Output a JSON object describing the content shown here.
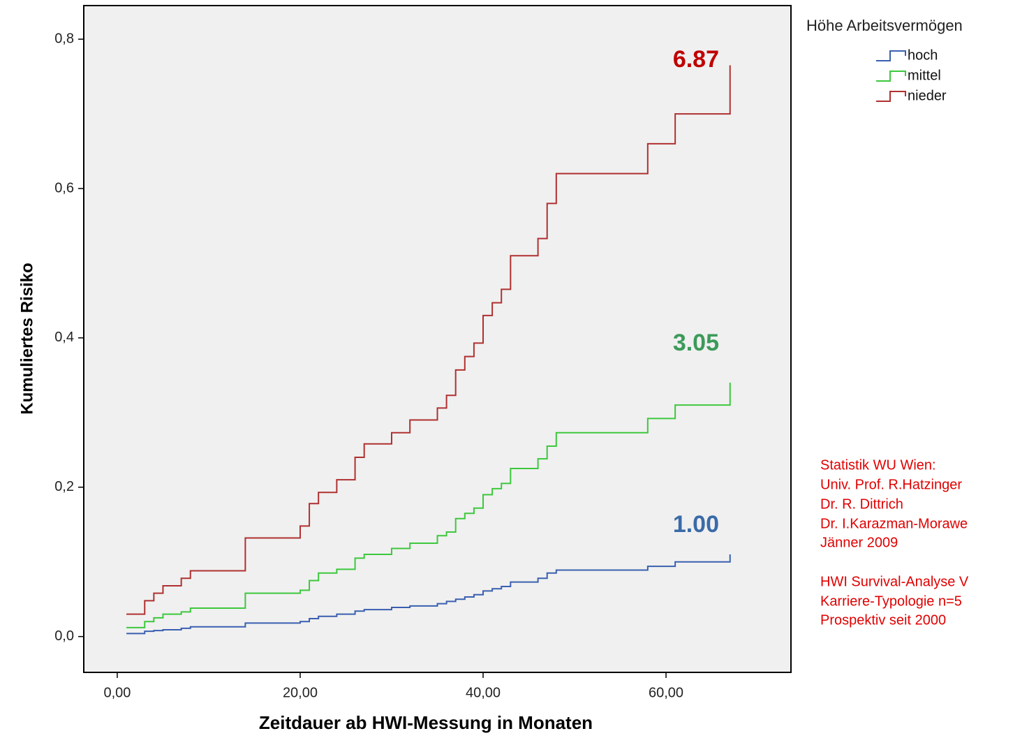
{
  "chart_data": {
    "type": "line",
    "step": "post",
    "x_label": "Zeitdauer ab HWI-Messung in Monaten",
    "y_label": "Kumuliertes Risiko",
    "x": [
      1,
      3,
      4,
      5,
      7,
      8,
      14,
      20,
      21,
      22,
      24,
      26,
      27,
      30,
      32,
      35,
      36,
      37,
      38,
      39,
      40,
      41,
      42,
      43,
      46,
      47,
      48,
      58,
      61,
      67
    ],
    "series": [
      {
        "name": "hoch",
        "color": "#3a5fb0",
        "values": [
          0.004,
          0.007,
          0.008,
          0.009,
          0.011,
          0.013,
          0.018,
          0.02,
          0.024,
          0.027,
          0.03,
          0.034,
          0.036,
          0.039,
          0.041,
          0.044,
          0.047,
          0.05,
          0.053,
          0.056,
          0.061,
          0.064,
          0.067,
          0.073,
          0.078,
          0.085,
          0.089,
          0.094,
          0.1,
          0.11
        ]
      },
      {
        "name": "mittel",
        "color": "#3cc83c",
        "values": [
          0.012,
          0.02,
          0.025,
          0.03,
          0.033,
          0.038,
          0.058,
          0.062,
          0.075,
          0.085,
          0.09,
          0.105,
          0.11,
          0.118,
          0.125,
          0.135,
          0.14,
          0.158,
          0.165,
          0.172,
          0.19,
          0.198,
          0.205,
          0.225,
          0.238,
          0.255,
          0.273,
          0.292,
          0.31,
          0.34
        ]
      },
      {
        "name": "nieder",
        "color": "#b03030",
        "values": [
          0.03,
          0.048,
          0.058,
          0.068,
          0.078,
          0.088,
          0.132,
          0.148,
          0.178,
          0.193,
          0.21,
          0.24,
          0.258,
          0.273,
          0.29,
          0.306,
          0.323,
          0.357,
          0.375,
          0.393,
          0.43,
          0.447,
          0.465,
          0.51,
          0.533,
          0.58,
          0.62,
          0.66,
          0.7,
          0.765
        ]
      }
    ],
    "legend_title": "Höhe Arbeitsvermögen",
    "legend": "outside-right",
    "xlim": [
      -3.66,
      73.66
    ],
    "ylim": [
      -0.048,
      0.845
    ],
    "xticks": [
      {
        "value": 0,
        "label": "0,00"
      },
      {
        "value": 20,
        "label": "20,00"
      },
      {
        "value": 40,
        "label": "40,00"
      },
      {
        "value": 60,
        "label": "60,00"
      }
    ],
    "yticks": [
      {
        "value": 0,
        "label": "0,0"
      },
      {
        "value": 0.2,
        "label": "0,2"
      },
      {
        "value": 0.4,
        "label": "0,4"
      },
      {
        "value": 0.6,
        "label": "0,6"
      },
      {
        "value": 0.8,
        "label": "0,8"
      }
    ],
    "annotations": [
      {
        "text": "6.87",
        "color": "#c00000"
      },
      {
        "text": "3.05",
        "color": "#3c9a5a"
      },
      {
        "text": "1.00",
        "color": "#3a6aa8"
      }
    ],
    "notes": [
      "Statistik WU Wien:",
      "Univ. Prof. R.Hatzinger",
      "Dr. R. Dittrich",
      "Dr. I.Karazman-Morawe",
      "Jänner 2009",
      "HWI Survival-Analyse V",
      "Karriere-Typologie n=5",
      "Prospektiv seit 2000"
    ]
  }
}
